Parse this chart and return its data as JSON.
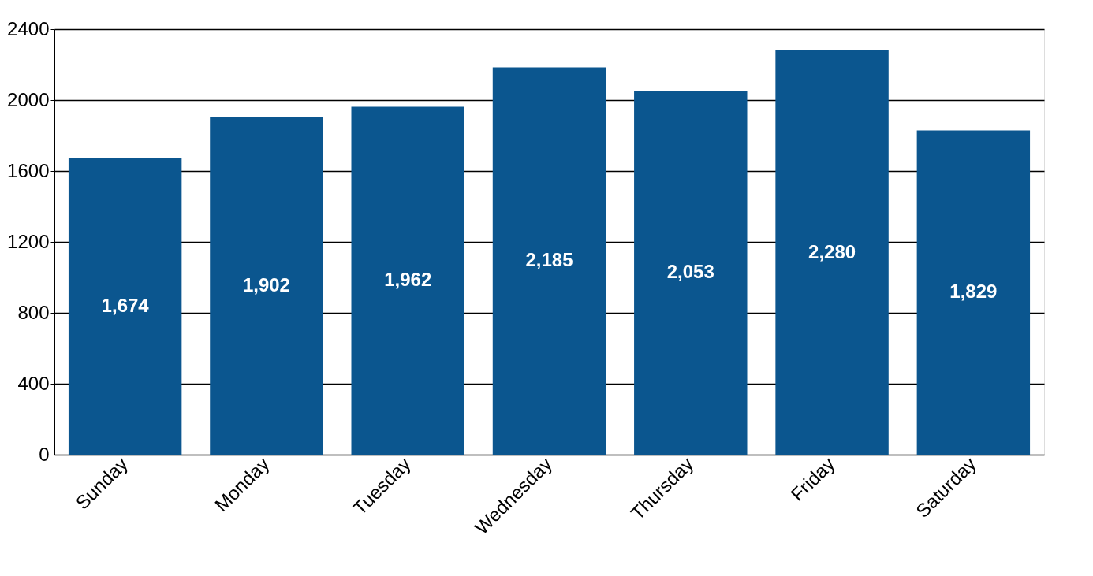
{
  "chart_data": {
    "type": "bar",
    "categories": [
      "Sunday",
      "Monday",
      "Tuesday",
      "Wednesday",
      "Thursday",
      "Friday",
      "Saturday"
    ],
    "values": [
      1674,
      1902,
      1962,
      2185,
      2053,
      2280,
      1829
    ],
    "value_labels": [
      "1,674",
      "1,902",
      "1,962",
      "2,185",
      "2,053",
      "2,280",
      "1,829"
    ],
    "color": "#0b568f",
    "ylim": [
      0,
      2400
    ],
    "yticks": [
      0,
      400,
      800,
      1200,
      1600,
      2000,
      2400
    ],
    "grid": "y"
  }
}
